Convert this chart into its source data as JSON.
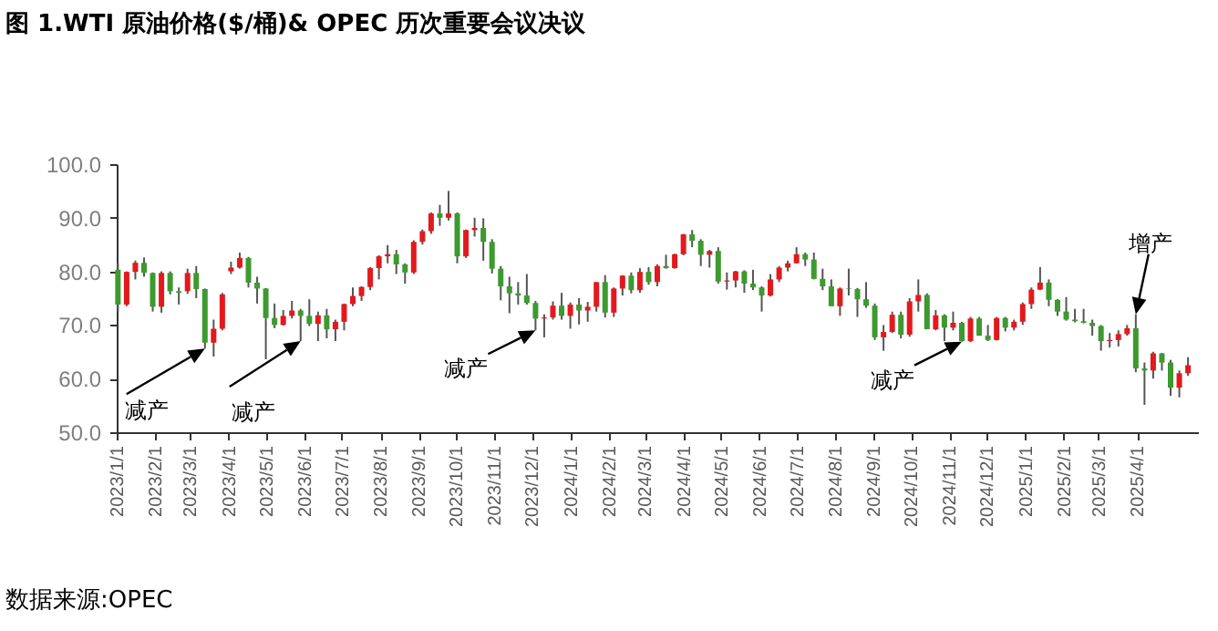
{
  "chart_data": {
    "type": "candlestick",
    "title": "图 1.WTI 原油价格($/桶)& OPEC 历次重要会议决议",
    "x": [
      "2023-01-02",
      "2023-01-09",
      "2023-01-16",
      "2023-01-23",
      "2023-01-30",
      "2023-02-06",
      "2023-02-13",
      "2023-02-20",
      "2023-02-27",
      "2023-03-06",
      "2023-03-13",
      "2023-03-20",
      "2023-03-27",
      "2023-04-03",
      "2023-04-10",
      "2023-04-17",
      "2023-04-24",
      "2023-05-01",
      "2023-05-08",
      "2023-05-15",
      "2023-05-22",
      "2023-05-29",
      "2023-06-05",
      "2023-06-12",
      "2023-06-19",
      "2023-06-26",
      "2023-07-03",
      "2023-07-10",
      "2023-07-17",
      "2023-07-24",
      "2023-07-31",
      "2023-08-07",
      "2023-08-14",
      "2023-08-21",
      "2023-08-28",
      "2023-09-04",
      "2023-09-11",
      "2023-09-18",
      "2023-09-25",
      "2023-10-02",
      "2023-10-09",
      "2023-10-16",
      "2023-10-23",
      "2023-10-30",
      "2023-11-06",
      "2023-11-13",
      "2023-11-20",
      "2023-11-27",
      "2023-12-04",
      "2023-12-11",
      "2023-12-18",
      "2023-12-25",
      "2024-01-01",
      "2024-01-08",
      "2024-01-15",
      "2024-01-22",
      "2024-01-29",
      "2024-02-05",
      "2024-02-12",
      "2024-02-19",
      "2024-02-26",
      "2024-03-04",
      "2024-03-11",
      "2024-03-18",
      "2024-03-25",
      "2024-04-01",
      "2024-04-08",
      "2024-04-15",
      "2024-04-22",
      "2024-04-29",
      "2024-05-06",
      "2024-05-13",
      "2024-05-20",
      "2024-05-27",
      "2024-06-03",
      "2024-06-10",
      "2024-06-17",
      "2024-06-24",
      "2024-07-01",
      "2024-07-08",
      "2024-07-15",
      "2024-07-22",
      "2024-07-29",
      "2024-08-05",
      "2024-08-12",
      "2024-08-19",
      "2024-08-26",
      "2024-09-02",
      "2024-09-09",
      "2024-09-16",
      "2024-09-23",
      "2024-09-30",
      "2024-10-07",
      "2024-10-14",
      "2024-10-21",
      "2024-10-28",
      "2024-11-04",
      "2024-11-11",
      "2024-11-18",
      "2024-11-25",
      "2024-12-02",
      "2024-12-09",
      "2024-12-16",
      "2024-12-23",
      "2024-12-30",
      "2025-01-06",
      "2025-01-13",
      "2025-01-20",
      "2025-01-27",
      "2025-02-03",
      "2025-02-10",
      "2025-02-17",
      "2025-02-24",
      "2025-03-03",
      "2025-03-10",
      "2025-03-17",
      "2025-03-24",
      "2025-03-31",
      "2025-04-07",
      "2025-04-14",
      "2025-04-21",
      "2025-04-28",
      "2025-05-05",
      "2025-05-12"
    ],
    "ohlc": [
      [
        80.3,
        81.5,
        72.5,
        73.8
      ],
      [
        73.8,
        80.0,
        73.5,
        79.9
      ],
      [
        79.9,
        82.0,
        78.5,
        81.6
      ],
      [
        81.6,
        82.6,
        79.0,
        79.7
      ],
      [
        79.7,
        79.8,
        72.5,
        73.4
      ],
      [
        73.4,
        80.0,
        72.3,
        79.7
      ],
      [
        79.7,
        80.0,
        75.7,
        76.3
      ],
      [
        76.3,
        77.0,
        73.8,
        76.0
      ],
      [
        76.3,
        80.5,
        75.8,
        79.7
      ],
      [
        79.7,
        81.0,
        75.0,
        76.7
      ],
      [
        76.7,
        76.8,
        65.6,
        66.7
      ],
      [
        66.7,
        71.0,
        64.1,
        69.3
      ],
      [
        69.3,
        76.0,
        69.0,
        75.7
      ],
      [
        80.0,
        81.8,
        79.5,
        80.7
      ],
      [
        80.7,
        83.5,
        80.5,
        82.5
      ],
      [
        82.5,
        82.7,
        77.0,
        77.9
      ],
      [
        77.9,
        79.0,
        74.0,
        76.8
      ],
      [
        76.8,
        76.9,
        63.6,
        71.3
      ],
      [
        71.3,
        74.0,
        69.4,
        70.0
      ],
      [
        70.0,
        72.8,
        69.9,
        71.7
      ],
      [
        71.7,
        74.5,
        71.2,
        72.7
      ],
      [
        72.7,
        73.0,
        67.0,
        71.7
      ],
      [
        71.7,
        74.8,
        69.8,
        70.2
      ],
      [
        70.2,
        72.5,
        67.0,
        71.8
      ],
      [
        71.8,
        73.0,
        67.5,
        69.2
      ],
      [
        69.2,
        71.0,
        67.0,
        70.6
      ],
      [
        70.6,
        74.0,
        69.0,
        73.9
      ],
      [
        73.9,
        77.0,
        73.5,
        75.4
      ],
      [
        75.4,
        77.2,
        74.5,
        77.1
      ],
      [
        77.1,
        80.8,
        76.5,
        80.6
      ],
      [
        80.6,
        83.0,
        78.5,
        82.8
      ],
      [
        82.8,
        84.9,
        81.5,
        83.2
      ],
      [
        83.2,
        84.0,
        79.5,
        81.3
      ],
      [
        81.3,
        81.5,
        77.7,
        79.8
      ],
      [
        79.8,
        85.8,
        79.5,
        85.5
      ],
      [
        85.5,
        87.8,
        85.0,
        87.5
      ],
      [
        87.5,
        91.0,
        87.0,
        90.8
      ],
      [
        90.8,
        92.4,
        88.5,
        90.0
      ],
      [
        90.0,
        95.0,
        89.5,
        90.8
      ],
      [
        90.8,
        91.0,
        81.5,
        82.8
      ],
      [
        82.8,
        87.8,
        82.5,
        87.7
      ],
      [
        87.7,
        90.0,
        86.5,
        88.1
      ],
      [
        88.1,
        89.9,
        82.0,
        85.5
      ],
      [
        85.5,
        86.0,
        79.6,
        80.5
      ],
      [
        80.5,
        81.0,
        74.6,
        77.2
      ],
      [
        77.2,
        79.0,
        72.2,
        75.9
      ],
      [
        75.9,
        78.0,
        73.8,
        75.5
      ],
      [
        75.5,
        79.5,
        73.8,
        74.1
      ],
      [
        74.1,
        74.5,
        69.0,
        71.2
      ],
      [
        71.2,
        72.0,
        67.7,
        71.4
      ],
      [
        71.4,
        74.4,
        71.0,
        73.6
      ],
      [
        73.6,
        76.0,
        71.0,
        71.7
      ],
      [
        71.7,
        74.2,
        69.3,
        73.8
      ],
      [
        73.8,
        75.0,
        70.1,
        72.7
      ],
      [
        72.7,
        74.3,
        70.6,
        73.4
      ],
      [
        73.4,
        78.0,
        72.5,
        78.0
      ],
      [
        78.0,
        79.3,
        71.4,
        72.3
      ],
      [
        72.3,
        77.0,
        71.5,
        76.8
      ],
      [
        76.8,
        79.3,
        75.5,
        79.2
      ],
      [
        79.2,
        79.8,
        75.9,
        76.5
      ],
      [
        76.5,
        80.6,
        76.0,
        79.9
      ],
      [
        79.9,
        80.8,
        77.5,
        78.0
      ],
      [
        78.0,
        81.3,
        77.2,
        81.0
      ],
      [
        81.0,
        83.1,
        80.5,
        80.6
      ],
      [
        80.6,
        83.3,
        80.5,
        83.2
      ],
      [
        83.2,
        87.0,
        83.0,
        86.9
      ],
      [
        86.9,
        87.7,
        84.5,
        85.7
      ],
      [
        85.7,
        86.0,
        81.0,
        83.1
      ],
      [
        83.1,
        84.0,
        80.7,
        83.8
      ],
      [
        83.8,
        84.5,
        77.7,
        78.1
      ],
      [
        78.1,
        79.8,
        76.6,
        78.3
      ],
      [
        78.3,
        80.1,
        77.0,
        80.0
      ],
      [
        80.0,
        80.2,
        76.0,
        77.7
      ],
      [
        77.7,
        80.3,
        76.5,
        77.0
      ],
      [
        77.0,
        77.2,
        72.5,
        75.5
      ],
      [
        75.5,
        79.5,
        75.3,
        78.5
      ],
      [
        78.5,
        81.0,
        78.0,
        80.7
      ],
      [
        80.7,
        82.0,
        80.0,
        81.5
      ],
      [
        81.5,
        84.5,
        81.5,
        83.2
      ],
      [
        83.2,
        83.5,
        81.0,
        82.2
      ],
      [
        82.2,
        83.5,
        78.5,
        78.6
      ],
      [
        78.6,
        80.5,
        76.5,
        77.2
      ],
      [
        77.2,
        78.5,
        73.5,
        73.5
      ],
      [
        73.5,
        77.0,
        71.7,
        76.8
      ],
      [
        76.8,
        80.5,
        75.5,
        76.7
      ],
      [
        76.7,
        76.9,
        71.5,
        74.8
      ],
      [
        74.8,
        78.0,
        73.2,
        73.6
      ],
      [
        73.6,
        74.0,
        67.2,
        67.7
      ],
      [
        67.7,
        70.0,
        65.2,
        68.7
      ],
      [
        68.7,
        72.5,
        68.5,
        71.9
      ],
      [
        71.9,
        72.5,
        67.5,
        68.2
      ],
      [
        68.2,
        75.0,
        67.8,
        74.4
      ],
      [
        74.4,
        78.5,
        72.5,
        75.6
      ],
      [
        75.6,
        75.9,
        69.2,
        69.2
      ],
      [
        69.2,
        72.8,
        69.0,
        71.8
      ],
      [
        71.8,
        72.0,
        67.0,
        69.5
      ],
      [
        69.5,
        72.5,
        69.0,
        70.4
      ],
      [
        70.4,
        70.6,
        66.9,
        67.0
      ],
      [
        67.0,
        71.5,
        66.8,
        71.2
      ],
      [
        71.2,
        71.5,
        68.0,
        68.0
      ],
      [
        68.0,
        70.0,
        67.0,
        67.2
      ],
      [
        67.2,
        71.5,
        67.1,
        71.3
      ],
      [
        71.3,
        71.5,
        68.8,
        69.5
      ],
      [
        69.5,
        71.0,
        69.0,
        70.6
      ],
      [
        70.6,
        74.2,
        70.0,
        73.9
      ],
      [
        73.9,
        77.0,
        73.0,
        76.6
      ],
      [
        76.6,
        80.8,
        76.5,
        77.9
      ],
      [
        77.9,
        78.5,
        73.5,
        74.7
      ],
      [
        74.7,
        74.8,
        71.7,
        72.5
      ],
      [
        72.5,
        75.2,
        70.8,
        71.0
      ],
      [
        71.0,
        73.0,
        70.5,
        70.7
      ],
      [
        70.7,
        73.0,
        70.3,
        70.4
      ],
      [
        70.4,
        71.0,
        68.0,
        69.8
      ],
      [
        69.8,
        70.0,
        65.2,
        67.0
      ],
      [
        67.0,
        68.5,
        65.8,
        67.2
      ],
      [
        67.2,
        69.0,
        66.0,
        68.3
      ],
      [
        68.3,
        70.0,
        68.0,
        69.4
      ],
      [
        69.4,
        72.0,
        61.2,
        61.9
      ],
      [
        61.9,
        63.0,
        55.1,
        61.5
      ],
      [
        61.5,
        65.0,
        60.0,
        64.7
      ],
      [
        64.7,
        64.8,
        61.5,
        63.0
      ],
      [
        63.0,
        63.5,
        56.8,
        58.3
      ],
      [
        58.3,
        61.5,
        56.5,
        61.0
      ],
      [
        61.0,
        64.0,
        60.5,
        62.5
      ]
    ],
    "colors": [
      "#3c9a2e",
      "#e3191c",
      "#e3191c",
      "#3c9a2e",
      "#3c9a2e",
      "#e3191c",
      "#3c9a2e",
      "#3c9a2e",
      "#e3191c",
      "#3c9a2e",
      "#3c9a2e",
      "#e3191c",
      "#e3191c",
      "#e3191c",
      "#e3191c",
      "#3c9a2e",
      "#3c9a2e",
      "#3c9a2e",
      "#3c9a2e",
      "#e3191c",
      "#e3191c",
      "#3c9a2e",
      "#3c9a2e",
      "#e3191c",
      "#3c9a2e",
      "#e3191c",
      "#e3191c",
      "#e3191c",
      "#e3191c",
      "#e3191c",
      "#e3191c",
      "#e3191c",
      "#3c9a2e",
      "#3c9a2e",
      "#e3191c",
      "#e3191c",
      "#e3191c",
      "#3c9a2e",
      "#e3191c",
      "#3c9a2e",
      "#e3191c",
      "#e3191c",
      "#3c9a2e",
      "#3c9a2e",
      "#3c9a2e",
      "#3c9a2e",
      "#3c9a2e",
      "#3c9a2e",
      "#3c9a2e",
      "#e3191c",
      "#e3191c",
      "#3c9a2e",
      "#e3191c",
      "#3c9a2e",
      "#e3191c",
      "#e3191c",
      "#3c9a2e",
      "#e3191c",
      "#e3191c",
      "#3c9a2e",
      "#e3191c",
      "#3c9a2e",
      "#e3191c",
      "#3c9a2e",
      "#e3191c",
      "#e3191c",
      "#3c9a2e",
      "#3c9a2e",
      "#e3191c",
      "#3c9a2e",
      "#e3191c",
      "#e3191c",
      "#3c9a2e",
      "#3c9a2e",
      "#3c9a2e",
      "#e3191c",
      "#e3191c",
      "#e3191c",
      "#e3191c",
      "#3c9a2e",
      "#3c9a2e",
      "#3c9a2e",
      "#3c9a2e",
      "#e3191c",
      "#3c9a2e",
      "#3c9a2e",
      "#3c9a2e",
      "#3c9a2e",
      "#e3191c",
      "#e3191c",
      "#3c9a2e",
      "#e3191c",
      "#e3191c",
      "#3c9a2e",
      "#e3191c",
      "#3c9a2e",
      "#e3191c",
      "#3c9a2e",
      "#e3191c",
      "#3c9a2e",
      "#3c9a2e",
      "#e3191c",
      "#3c9a2e",
      "#e3191c",
      "#e3191c",
      "#e3191c",
      "#e3191c",
      "#3c9a2e",
      "#3c9a2e",
      "#3c9a2e",
      "#3c9a2e",
      "#3c9a2e",
      "#3c9a2e",
      "#3c9a2e",
      "#e3191c",
      "#e3191c",
      "#e3191c",
      "#3c9a2e",
      "#3c9a2e",
      "#e3191c",
      "#3c9a2e",
      "#3c9a2e",
      "#e3191c",
      "#e3191c"
    ],
    "xlim": [
      "2023-01-01",
      "2025-05-20"
    ],
    "xticks": [
      {
        "value": "2023-01-01",
        "label": "2023/1/1"
      },
      {
        "value": "2023-02-01",
        "label": "2023/2/1"
      },
      {
        "value": "2023-03-01",
        "label": "2023/3/1"
      },
      {
        "value": "2023-04-01",
        "label": "2023/4/1"
      },
      {
        "value": "2023-05-01",
        "label": "2023/5/1"
      },
      {
        "value": "2023-06-01",
        "label": "2023/6/1"
      },
      {
        "value": "2023-07-01",
        "label": "2023/7/1"
      },
      {
        "value": "2023-08-01",
        "label": "2023/8/1"
      },
      {
        "value": "2023-09-01",
        "label": "2023/9/1"
      },
      {
        "value": "2023-10-01",
        "label": "2023/10/1"
      },
      {
        "value": "2023-11-01",
        "label": "2023/11/1"
      },
      {
        "value": "2023-12-01",
        "label": "2023/12/1"
      },
      {
        "value": "2024-01-01",
        "label": "2024/1/1"
      },
      {
        "value": "2024-02-01",
        "label": "2024/2/1"
      },
      {
        "value": "2024-03-01",
        "label": "2024/3/1"
      },
      {
        "value": "2024-04-01",
        "label": "2024/4/1"
      },
      {
        "value": "2024-05-01",
        "label": "2024/5/1"
      },
      {
        "value": "2024-06-01",
        "label": "2024/6/1"
      },
      {
        "value": "2024-07-01",
        "label": "2024/7/1"
      },
      {
        "value": "2024-08-01",
        "label": "2024/8/1"
      },
      {
        "value": "2024-09-01",
        "label": "2024/9/1"
      },
      {
        "value": "2024-10-01",
        "label": "2024/10/1"
      },
      {
        "value": "2024-11-01",
        "label": "2024/11/1"
      },
      {
        "value": "2024-12-01",
        "label": "2024/12/1"
      },
      {
        "value": "2025-01-01",
        "label": "2025/1/1"
      },
      {
        "value": "2025-02-01",
        "label": "2025/2/1"
      },
      {
        "value": "2025-03-01",
        "label": "2025/3/1"
      },
      {
        "value": "2025-04-01",
        "label": "2025/4/1"
      }
    ],
    "ylim": [
      50,
      100
    ],
    "yticks": [
      {
        "value": 50,
        "label": "50.0"
      },
      {
        "value": 60,
        "label": "60.0"
      },
      {
        "value": 70,
        "label": "70.0"
      },
      {
        "value": 80,
        "label": "80.0"
      },
      {
        "value": 90,
        "label": "90.0"
      },
      {
        "value": 100,
        "label": "100.0"
      }
    ],
    "annotations": [
      {
        "text": "减产",
        "x": "2023-03-13",
        "y": 65.6
      },
      {
        "text": "减产",
        "x": "2023-05-29",
        "y": 67.0
      },
      {
        "text": "减产",
        "x": "2023-12-04",
        "y": 69.0
      },
      {
        "text": "减产",
        "x": "2024-11-11",
        "y": 66.9
      },
      {
        "text": "增产",
        "x": "2025-03-31",
        "y": 72.0
      },
      "数据来源:OPEC"
    ]
  }
}
